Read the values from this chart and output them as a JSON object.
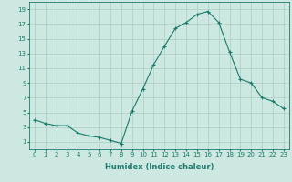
{
  "x": [
    0,
    1,
    2,
    3,
    4,
    5,
    6,
    7,
    8,
    9,
    10,
    11,
    12,
    13,
    14,
    15,
    16,
    17,
    18,
    19,
    20,
    21,
    22,
    23
  ],
  "y": [
    4.0,
    3.5,
    3.2,
    3.2,
    2.2,
    1.8,
    1.6,
    1.2,
    0.8,
    5.2,
    8.2,
    11.5,
    14.0,
    16.4,
    17.2,
    18.3,
    18.7,
    17.2,
    13.2,
    9.5,
    9.0,
    7.0,
    6.5,
    5.5
  ],
  "xlabel": "Humidex (Indice chaleur)",
  "xlim": [
    -0.5,
    23.5
  ],
  "ylim": [
    0,
    20
  ],
  "yticks": [
    1,
    3,
    5,
    7,
    9,
    11,
    13,
    15,
    17,
    19
  ],
  "xticks": [
    0,
    1,
    2,
    3,
    4,
    5,
    6,
    7,
    8,
    9,
    10,
    11,
    12,
    13,
    14,
    15,
    16,
    17,
    18,
    19,
    20,
    21,
    22,
    23
  ],
  "line_color": "#1a7a6e",
  "marker": "+",
  "bg_color": "#cce8e0",
  "grid_color": "#aaccc4",
  "xlabel_fontsize": 6.0,
  "tick_fontsize": 5.0
}
